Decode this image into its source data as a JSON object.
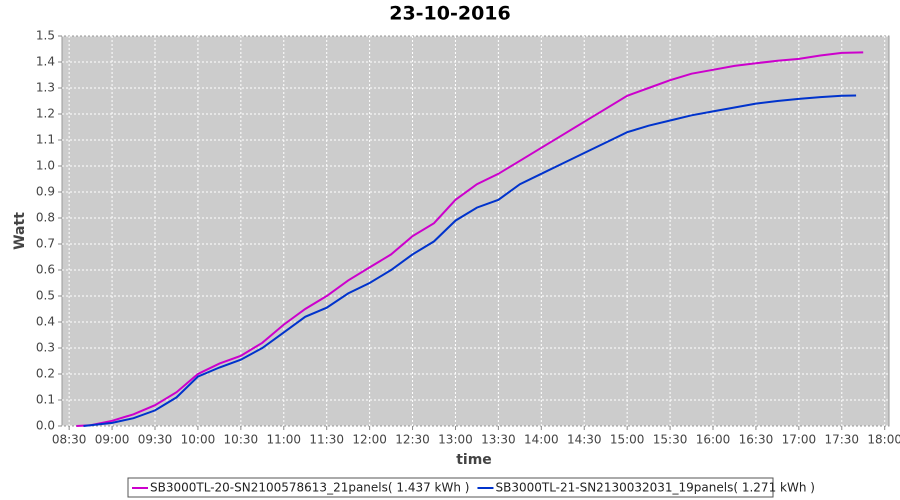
{
  "chart_data": {
    "type": "line",
    "title": "23-10-2016",
    "x_label": "time",
    "y_label": "Watt",
    "xlim": [
      "08:25",
      "18:03"
    ],
    "xticks": [
      "08:30",
      "09:00",
      "09:30",
      "10:00",
      "10:30",
      "11:00",
      "11:30",
      "12:00",
      "12:30",
      "13:00",
      "13:30",
      "14:00",
      "14:30",
      "15:00",
      "15:30",
      "16:00",
      "16:30",
      "17:00",
      "17:30",
      "18:00"
    ],
    "ylim": [
      0,
      1.5
    ],
    "yticks": [
      {
        "value": 0,
        "label": "0.0"
      },
      0.1,
      0.2,
      0.3,
      0.4,
      0.5,
      0.6,
      0.7,
      0.8,
      0.9,
      {
        "value": 1,
        "label": "1.0"
      },
      1.1,
      1.2,
      1.3,
      1.4,
      1.5
    ],
    "grid": true,
    "legend": "bottom",
    "series": [
      {
        "name": "SB3000TL-20-SN2100578613_21panels( 1.437 kWh )",
        "color": "#cc00cc",
        "x": [
          "08:35",
          "08:45",
          "09:00",
          "09:15",
          "09:30",
          "09:45",
          "10:00",
          "10:15",
          "10:30",
          "10:45",
          "11:00",
          "11:15",
          "11:30",
          "11:45",
          "12:00",
          "12:15",
          "12:30",
          "12:45",
          "13:00",
          "13:15",
          "13:30",
          "13:45",
          "14:00",
          "14:15",
          "14:30",
          "14:45",
          "15:00",
          "15:15",
          "15:30",
          "15:45",
          "16:00",
          "16:15",
          "16:30",
          "16:45",
          "17:00",
          "17:15",
          "17:30",
          "17:45"
        ],
        "values": [
          0.0,
          0.003,
          0.02,
          0.045,
          0.08,
          0.13,
          0.2,
          0.24,
          0.27,
          0.32,
          0.39,
          0.45,
          0.5,
          0.56,
          0.61,
          0.66,
          0.73,
          0.78,
          0.87,
          0.93,
          0.97,
          1.02,
          1.07,
          1.12,
          1.17,
          1.22,
          1.27,
          1.3,
          1.33,
          1.355,
          1.37,
          1.385,
          1.395,
          1.405,
          1.412,
          1.425,
          1.435,
          1.437
        ]
      },
      {
        "name": "SB3000TL-21-SN2130032031_19panels( 1.271 kWh )",
        "color": "#0033cc",
        "x": [
          "08:40",
          "09:00",
          "09:15",
          "09:30",
          "09:45",
          "10:00",
          "10:15",
          "10:30",
          "10:45",
          "11:00",
          "11:15",
          "11:30",
          "11:45",
          "12:00",
          "12:15",
          "12:30",
          "12:45",
          "13:00",
          "13:15",
          "13:30",
          "13:45",
          "14:00",
          "14:15",
          "14:30",
          "14:45",
          "15:00",
          "15:15",
          "15:30",
          "15:45",
          "16:00",
          "16:15",
          "16:30",
          "16:45",
          "17:00",
          "17:15",
          "17:30",
          "17:40"
        ],
        "values": [
          0.0,
          0.012,
          0.03,
          0.06,
          0.11,
          0.19,
          0.225,
          0.255,
          0.3,
          0.36,
          0.42,
          0.455,
          0.51,
          0.55,
          0.6,
          0.66,
          0.71,
          0.79,
          0.84,
          0.87,
          0.93,
          0.97,
          1.01,
          1.05,
          1.09,
          1.13,
          1.155,
          1.175,
          1.195,
          1.21,
          1.225,
          1.24,
          1.25,
          1.258,
          1.265,
          1.27,
          1.271
        ]
      }
    ]
  }
}
